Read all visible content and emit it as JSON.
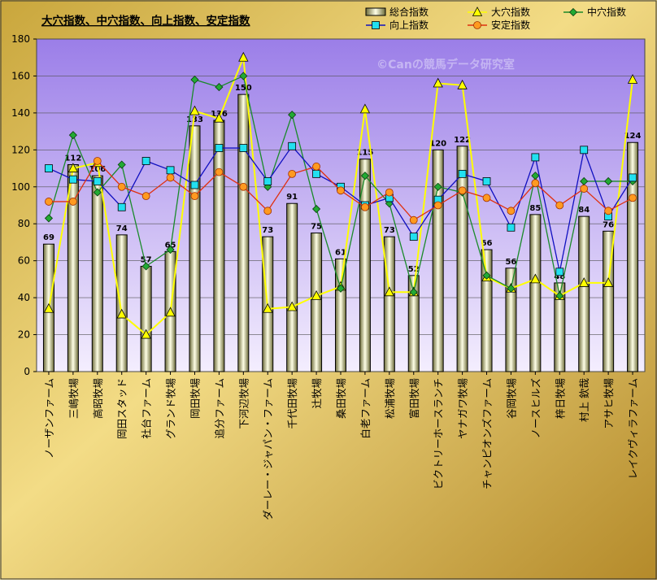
{
  "chart_data": {
    "type": "bar",
    "title": "大穴指数、中穴指数、向上指数、安定指数",
    "watermark": "©Canの競馬データ研究室",
    "categories": [
      "ノーザンファーム",
      "三嶋牧場",
      "高昭牧場",
      "岡田スタッド",
      "社台ファーム",
      "グランド牧場",
      "岡田牧場",
      "追分ファーム",
      "下河辺牧場",
      "ダーレー・ジャパン・ファーム",
      "千代田牧場",
      "辻牧場",
      "桑田牧場",
      "白老ファーム",
      "松浦牧場",
      "富田牧場",
      "ビクトリーホースランチ",
      "ヤナガワ牧場",
      "チャンピオンズファーム",
      "谷岡牧場",
      "ノースヒルズ",
      "梓日牧場",
      "村上 欽哉",
      "アサヒ牧場",
      "レイクヴィラファーム"
    ],
    "ylim": [
      0,
      180
    ],
    "yticks": [
      0,
      20,
      40,
      60,
      80,
      100,
      120,
      140,
      160,
      180
    ],
    "grid": true,
    "legend_position": "top-right",
    "series": [
      {
        "name": "総合指数",
        "kind": "bar",
        "color": "#ffffe0",
        "values": [
          69,
          112,
          106,
          74,
          57,
          65,
          133,
          136,
          150,
          73,
          91,
          75,
          61,
          115,
          73,
          52,
          120,
          122,
          66,
          56,
          85,
          48,
          84,
          76,
          124
        ]
      },
      {
        "name": "大穴指数",
        "kind": "line",
        "color": "#ffff00",
        "marker": "triangle",
        "values": [
          34,
          110,
          113,
          31,
          20,
          32,
          141,
          137,
          170,
          34,
          35,
          41,
          46,
          142,
          43,
          43,
          156,
          155,
          51,
          45,
          50,
          41,
          48,
          48,
          158
        ]
      },
      {
        "name": "中穴指数",
        "kind": "line",
        "color": "#1a8a2a",
        "marker": "diamond",
        "values": [
          83,
          128,
          97,
          112,
          57,
          66,
          158,
          154,
          160,
          100,
          139,
          88,
          45,
          106,
          91,
          43,
          100,
          97,
          52,
          45,
          106,
          41,
          103,
          103,
          103
        ]
      },
      {
        "name": "向上指数",
        "kind": "line",
        "color": "#1010c0",
        "marker": "square",
        "values": [
          110,
          104,
          103,
          89,
          114,
          109,
          101,
          121,
          121,
          103,
          122,
          107,
          100,
          90,
          94,
          73,
          93,
          107,
          103,
          78,
          116,
          54,
          120,
          84,
          105
        ]
      },
      {
        "name": "安定指数",
        "kind": "line",
        "color": "#e03010",
        "marker": "circle",
        "values": [
          92,
          92,
          114,
          100,
          95,
          105,
          95,
          108,
          100,
          87,
          107,
          111,
          98,
          89,
          97,
          82,
          90,
          98,
          94,
          87,
          102,
          90,
          99,
          87,
          94
        ]
      }
    ]
  }
}
